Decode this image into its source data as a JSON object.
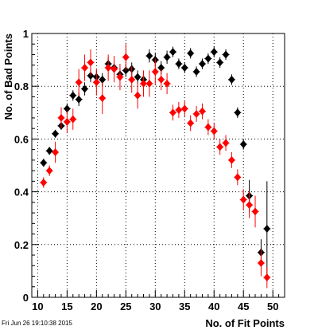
{
  "timestamp": "Fri Jun 26 19:10:38 2015",
  "chart_data": {
    "type": "scatter",
    "xlabel": "No. of Fit Points",
    "ylabel": "No. of Bad Points",
    "xlim": [
      9,
      52
    ],
    "ylim": [
      0,
      1
    ],
    "xticks": [
      10,
      15,
      20,
      25,
      30,
      35,
      40,
      45,
      50
    ],
    "yticks": [
      0,
      0.2,
      0.4,
      0.6,
      0.8,
      1
    ],
    "ytick_labels": [
      "0",
      "0.2",
      "0.4",
      "0.6",
      "0.8",
      "1"
    ],
    "grid": true,
    "marker": "diamond",
    "series": [
      {
        "color": "#000000",
        "points": [
          {
            "x": 11,
            "y": 0.51,
            "err": 0.015
          },
          {
            "x": 12,
            "y": 0.555,
            "err": 0.015
          },
          {
            "x": 13,
            "y": 0.62,
            "err": 0.015
          },
          {
            "x": 14,
            "y": 0.65,
            "err": 0.015
          },
          {
            "x": 15,
            "y": 0.715,
            "err": 0.02
          },
          {
            "x": 16,
            "y": 0.765,
            "err": 0.02
          },
          {
            "x": 17,
            "y": 0.75,
            "err": 0.025
          },
          {
            "x": 18,
            "y": 0.79,
            "err": 0.025
          },
          {
            "x": 19,
            "y": 0.84,
            "err": 0.025
          },
          {
            "x": 20,
            "y": 0.835,
            "err": 0.025
          },
          {
            "x": 21,
            "y": 0.825,
            "err": 0.025
          },
          {
            "x": 22,
            "y": 0.885,
            "err": 0.025
          },
          {
            "x": 23,
            "y": 0.87,
            "err": 0.025
          },
          {
            "x": 24,
            "y": 0.845,
            "err": 0.025
          },
          {
            "x": 25,
            "y": 0.86,
            "err": 0.025
          },
          {
            "x": 26,
            "y": 0.865,
            "err": 0.025
          },
          {
            "x": 27,
            "y": 0.835,
            "err": 0.025
          },
          {
            "x": 28,
            "y": 0.825,
            "err": 0.025
          },
          {
            "x": 29,
            "y": 0.915,
            "err": 0.025
          },
          {
            "x": 30,
            "y": 0.9,
            "err": 0.025
          },
          {
            "x": 31,
            "y": 0.87,
            "err": 0.025
          },
          {
            "x": 32,
            "y": 0.91,
            "err": 0.025
          },
          {
            "x": 33,
            "y": 0.93,
            "err": 0.02
          },
          {
            "x": 34,
            "y": 0.885,
            "err": 0.02
          },
          {
            "x": 35,
            "y": 0.87,
            "err": 0.02
          },
          {
            "x": 36,
            "y": 0.925,
            "err": 0.02
          },
          {
            "x": 37,
            "y": 0.855,
            "err": 0.02
          },
          {
            "x": 38,
            "y": 0.885,
            "err": 0.02
          },
          {
            "x": 39,
            "y": 0.905,
            "err": 0.02
          },
          {
            "x": 40,
            "y": 0.93,
            "err": 0.02
          },
          {
            "x": 41,
            "y": 0.89,
            "err": 0.02
          },
          {
            "x": 42,
            "y": 0.92,
            "err": 0.02
          },
          {
            "x": 43,
            "y": 0.825,
            "err": 0.02
          },
          {
            "x": 44,
            "y": 0.7,
            "err": 0.02
          },
          {
            "x": 45,
            "y": 0.58,
            "err": 0.02
          },
          {
            "x": 46,
            "y": 0.385,
            "err": 0.06
          },
          {
            "x": 48,
            "y": 0.17,
            "err": 0.05
          },
          {
            "x": 49,
            "y": 0.26,
            "err": 0.18
          }
        ]
      },
      {
        "color": "#ff0000",
        "points": [
          {
            "x": 11,
            "y": 0.435,
            "err": 0.02
          },
          {
            "x": 12,
            "y": 0.48,
            "err": 0.02
          },
          {
            "x": 13,
            "y": 0.55,
            "err": 0.04
          },
          {
            "x": 14,
            "y": 0.68,
            "err": 0.04
          },
          {
            "x": 15,
            "y": 0.665,
            "err": 0.04
          },
          {
            "x": 16,
            "y": 0.675,
            "err": 0.04
          },
          {
            "x": 17,
            "y": 0.815,
            "err": 0.05
          },
          {
            "x": 18,
            "y": 0.87,
            "err": 0.05
          },
          {
            "x": 19,
            "y": 0.89,
            "err": 0.05
          },
          {
            "x": 20,
            "y": 0.815,
            "err": 0.05
          },
          {
            "x": 21,
            "y": 0.755,
            "err": 0.06
          },
          {
            "x": 22,
            "y": 0.87,
            "err": 0.05
          },
          {
            "x": 23,
            "y": 0.865,
            "err": 0.05
          },
          {
            "x": 24,
            "y": 0.835,
            "err": 0.05
          },
          {
            "x": 25,
            "y": 0.91,
            "err": 0.05
          },
          {
            "x": 26,
            "y": 0.825,
            "err": 0.05
          },
          {
            "x": 27,
            "y": 0.765,
            "err": 0.05
          },
          {
            "x": 28,
            "y": 0.81,
            "err": 0.05
          },
          {
            "x": 29,
            "y": 0.81,
            "err": 0.05
          },
          {
            "x": 30,
            "y": 0.855,
            "err": 0.05
          },
          {
            "x": 31,
            "y": 0.825,
            "err": 0.04
          },
          {
            "x": 32,
            "y": 0.81,
            "err": 0.04
          },
          {
            "x": 33,
            "y": 0.7,
            "err": 0.03
          },
          {
            "x": 34,
            "y": 0.71,
            "err": 0.03
          },
          {
            "x": 35,
            "y": 0.715,
            "err": 0.03
          },
          {
            "x": 36,
            "y": 0.66,
            "err": 0.03
          },
          {
            "x": 37,
            "y": 0.695,
            "err": 0.03
          },
          {
            "x": 38,
            "y": 0.705,
            "err": 0.03
          },
          {
            "x": 39,
            "y": 0.645,
            "err": 0.03
          },
          {
            "x": 40,
            "y": 0.63,
            "err": 0.03
          },
          {
            "x": 41,
            "y": 0.57,
            "err": 0.03
          },
          {
            "x": 42,
            "y": 0.585,
            "err": 0.03
          },
          {
            "x": 43,
            "y": 0.52,
            "err": 0.03
          },
          {
            "x": 44,
            "y": 0.455,
            "err": 0.03
          },
          {
            "x": 45,
            "y": 0.37,
            "err": 0.04
          },
          {
            "x": 46,
            "y": 0.35,
            "err": 0.05
          },
          {
            "x": 47,
            "y": 0.325,
            "err": 0.06
          },
          {
            "x": 48,
            "y": 0.13,
            "err": 0.05
          },
          {
            "x": 49,
            "y": 0.075,
            "err": 0.04
          }
        ]
      }
    ]
  }
}
